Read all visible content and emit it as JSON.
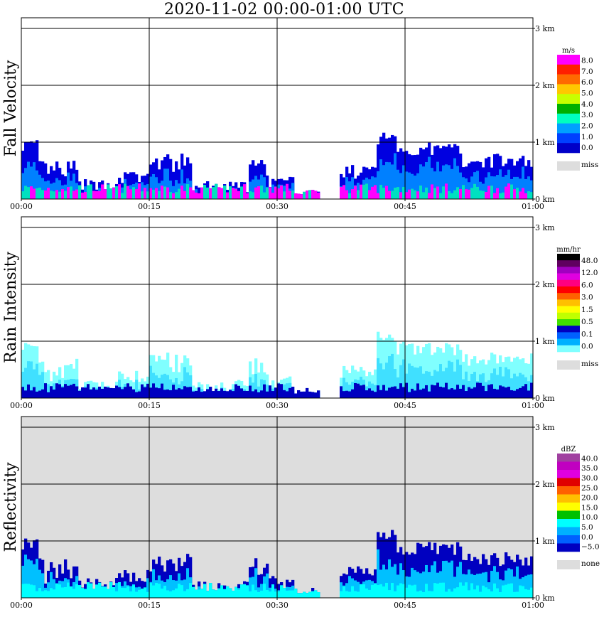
{
  "title": "2020-11-02   00:00-01:00 UTC",
  "x_tick_labels": [
    "00:00",
    "00:15",
    "00:30",
    "00:45",
    "01:00"
  ],
  "y_tick_labels": [
    "0 km",
    "1 km",
    "2 km",
    "3 km"
  ],
  "chart_data": [
    {
      "type": "heatmap",
      "ylabel": "Fall Velocity",
      "colorbar_unit": "m/s",
      "colorbar_labels": [
        "8.0",
        "7.0",
        "6.0",
        "5.0",
        "4.0",
        "3.0",
        "2.0",
        "1.0",
        "0.0"
      ],
      "colorbar_colors": [
        "#ff00ff",
        "#ff2000",
        "#ff6a00",
        "#ffc800",
        "#c8ff00",
        "#00b000",
        "#00ffc0",
        "#00a0ff",
        "#0040ff",
        "#0000c8"
      ],
      "missing_label": "miss",
      "missing_color": "#dddddd",
      "background": "#ffffff",
      "xlim": [
        "00:00",
        "01:00"
      ],
      "ylim_km": [
        0,
        3.2
      ]
    },
    {
      "type": "heatmap",
      "ylabel": "Rain Intensity",
      "colorbar_unit": "mm/hr",
      "colorbar_labels": [
        "48.0",
        "12.0",
        "6.0",
        "3.0",
        "1.5",
        "0.5",
        "0.1",
        "0.0"
      ],
      "colorbar_colors": [
        "#000000",
        "#600060",
        "#a000c0",
        "#e000e0",
        "#ff0080",
        "#ff0000",
        "#ff6000",
        "#ffc000",
        "#ffff00",
        "#c0ff00",
        "#40e000",
        "#0000c0",
        "#0060ff",
        "#00b0ff",
        "#80ffff"
      ],
      "missing_label": "miss",
      "missing_color": "#dddddd",
      "background": "#ffffff",
      "xlim": [
        "00:00",
        "01:00"
      ],
      "ylim_km": [
        0,
        3.2
      ]
    },
    {
      "type": "heatmap",
      "ylabel": "Reflectivity",
      "colorbar_unit": "dBZ",
      "colorbar_labels": [
        "40.0",
        "35.0",
        "30.0",
        "25.0",
        "20.0",
        "15.0",
        "10.0",
        "5.0",
        "0.0",
        "−5.0"
      ],
      "colorbar_colors": [
        "#a040a0",
        "#c000c0",
        "#e000e0",
        "#e00000",
        "#ff6000",
        "#ffc000",
        "#ffff00",
        "#00c000",
        "#00ffff",
        "#00b0ff",
        "#0060ff",
        "#0000c0"
      ],
      "missing_label": "none",
      "missing_color": "#dddddd",
      "background": "#dddddd",
      "xlim": [
        "00:00",
        "01:00"
      ],
      "ylim_km": [
        0,
        3.2
      ]
    }
  ]
}
